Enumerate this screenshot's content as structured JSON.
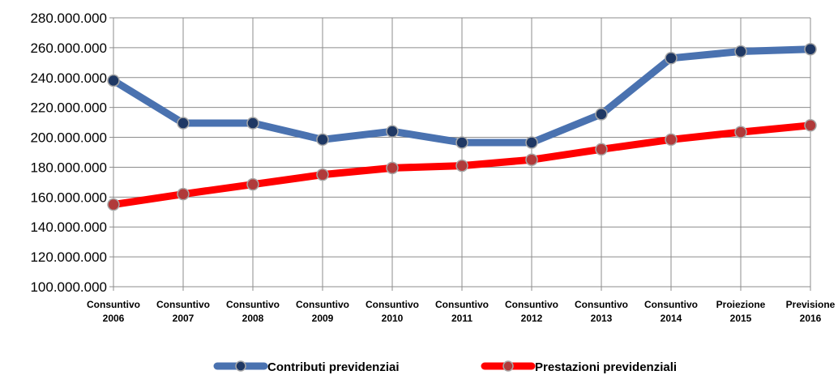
{
  "chart_data": {
    "type": "line",
    "categories": [
      [
        "Consuntivo",
        "2006"
      ],
      [
        "Consuntivo",
        "2007"
      ],
      [
        "Consuntivo",
        "2008"
      ],
      [
        "Consuntivo",
        "2009"
      ],
      [
        "Consuntivo",
        "2010"
      ],
      [
        "Consuntivo",
        "2011"
      ],
      [
        "Consuntivo",
        "2012"
      ],
      [
        "Consuntivo",
        "2013"
      ],
      [
        "Consuntivo",
        "2014"
      ],
      [
        "Proiezione",
        "2015"
      ],
      [
        "Previsione",
        "2016"
      ]
    ],
    "series": [
      {
        "name": "Contributi previdenziai",
        "color": "#4a72b0",
        "marker_color": "#1f3864",
        "values": [
          238000000,
          209500000,
          209500000,
          198500000,
          204000000,
          196500000,
          196500000,
          215500000,
          253000000,
          257500000,
          259000000
        ]
      },
      {
        "name": "Prestazioni previdenziali",
        "color": "#ff0000",
        "marker_color": "#b03a3a",
        "values": [
          155000000,
          162000000,
          168500000,
          175000000,
          179500000,
          181000000,
          185000000,
          192000000,
          198500000,
          203500000,
          208000000
        ]
      }
    ],
    "ylim": [
      100000000,
      280000000
    ],
    "yticks": [
      "100.000.000",
      "120.000.000",
      "140.000.000",
      "160.000.000",
      "180.000.000",
      "200.000.000",
      "220.000.000",
      "240.000.000",
      "260.000.000",
      "280.000.000"
    ],
    "title": "",
    "xlabel": "",
    "ylabel": "",
    "grid": true,
    "legend_position": "bottom"
  }
}
